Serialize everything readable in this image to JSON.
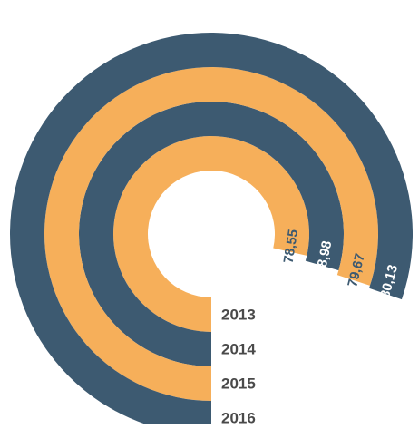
{
  "chart_data": {
    "type": "radial-bar",
    "title": "",
    "categories": [
      "2013",
      "2014",
      "2015",
      "2016"
    ],
    "values": [
      78.55,
      78.98,
      79.67,
      80.13
    ],
    "value_labels": [
      "78,55",
      "78,98",
      "79,67",
      "80,13"
    ],
    "colors": [
      "#F6AF5A",
      "#3D5A71",
      "#F6AF5A",
      "#3D5A71"
    ],
    "label_colors": [
      "#3D5A71",
      "#ffffff",
      "#3D5A71",
      "#ffffff"
    ],
    "year_label_color": "#4a4a4a",
    "legend": "none",
    "grid": false
  }
}
